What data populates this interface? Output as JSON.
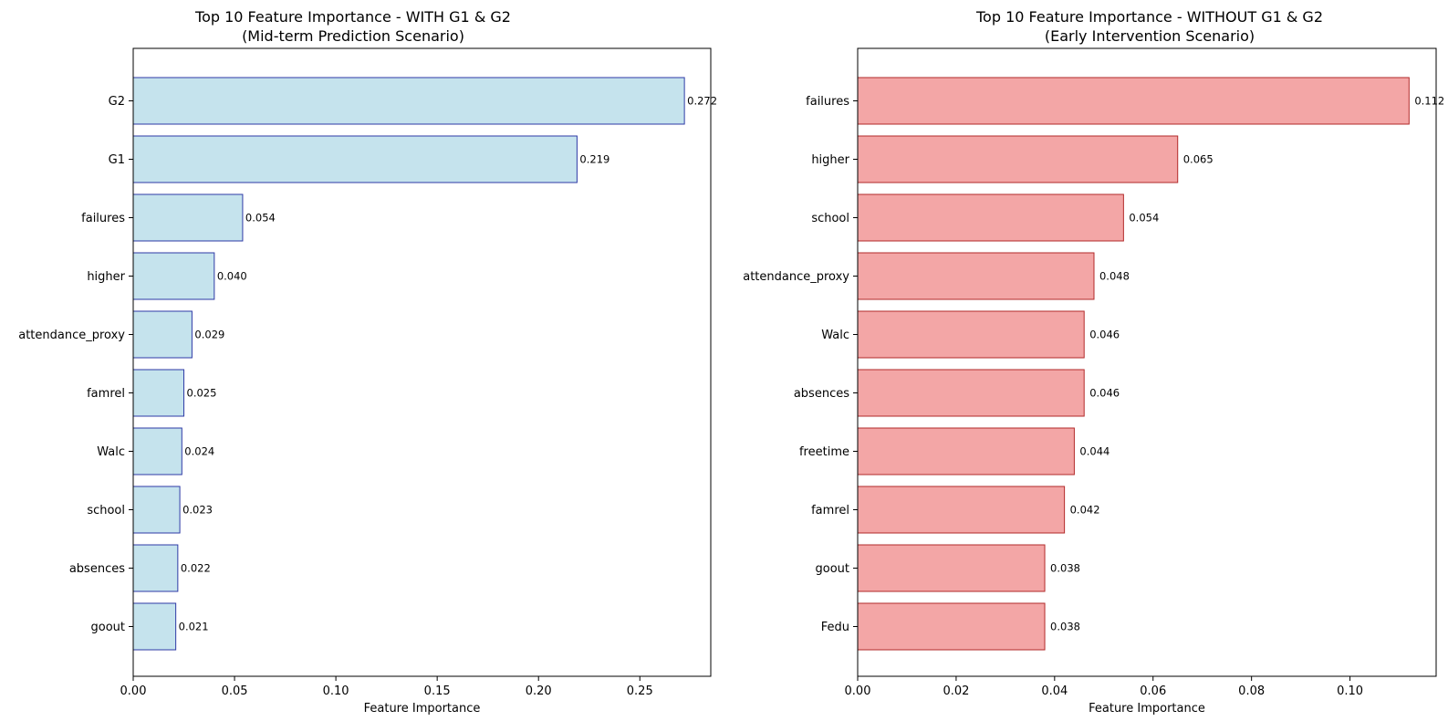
{
  "chart_data": [
    {
      "type": "bar",
      "orientation": "horizontal",
      "title": "Top 10 Feature Importance - WITH G1 & G2",
      "subtitle": "(Mid-term Prediction Scenario)",
      "xlabel": "Feature Importance",
      "ylabel": "",
      "categories": [
        "G2",
        "G1",
        "failures",
        "higher",
        "attendance_proxy",
        "famrel",
        "Walc",
        "school",
        "absences",
        "goout"
      ],
      "values": [
        0.272,
        0.219,
        0.054,
        0.04,
        0.029,
        0.025,
        0.024,
        0.023,
        0.022,
        0.021
      ],
      "value_labels": [
        "0.272",
        "0.219",
        "0.054",
        "0.040",
        "0.029",
        "0.025",
        "0.024",
        "0.023",
        "0.022",
        "0.021"
      ],
      "xlim": [
        0,
        0.285
      ],
      "xticks": [
        0,
        0.05,
        0.1,
        0.15,
        0.2,
        0.25
      ],
      "xtick_labels": [
        "0.00",
        "0.05",
        "0.10",
        "0.15",
        "0.20",
        "0.25"
      ],
      "grid": false,
      "bar_fill": "#c5e3ed",
      "bar_edge": "#2e3aa6"
    },
    {
      "type": "bar",
      "orientation": "horizontal",
      "title": "Top 10 Feature Importance - WITHOUT G1 & G2",
      "subtitle": "(Early Intervention Scenario)",
      "xlabel": "Feature Importance",
      "ylabel": "",
      "categories": [
        "failures",
        "higher",
        "school",
        "attendance_proxy",
        "Walc",
        "absences",
        "freetime",
        "famrel",
        "goout",
        "Fedu"
      ],
      "values": [
        0.112,
        0.065,
        0.054,
        0.048,
        0.046,
        0.046,
        0.044,
        0.042,
        0.038,
        0.038
      ],
      "value_labels": [
        "0.112",
        "0.065",
        "0.054",
        "0.048",
        "0.046",
        "0.046",
        "0.044",
        "0.042",
        "0.038",
        "0.038"
      ],
      "xlim": [
        0,
        0.1175
      ],
      "xticks": [
        0,
        0.02,
        0.04,
        0.06,
        0.08,
        0.1
      ],
      "xtick_labels": [
        "0.00",
        "0.02",
        "0.04",
        "0.06",
        "0.08",
        "0.10"
      ],
      "grid": false,
      "bar_fill": "#f3a6a6",
      "bar_edge": "#b22a2a"
    }
  ]
}
